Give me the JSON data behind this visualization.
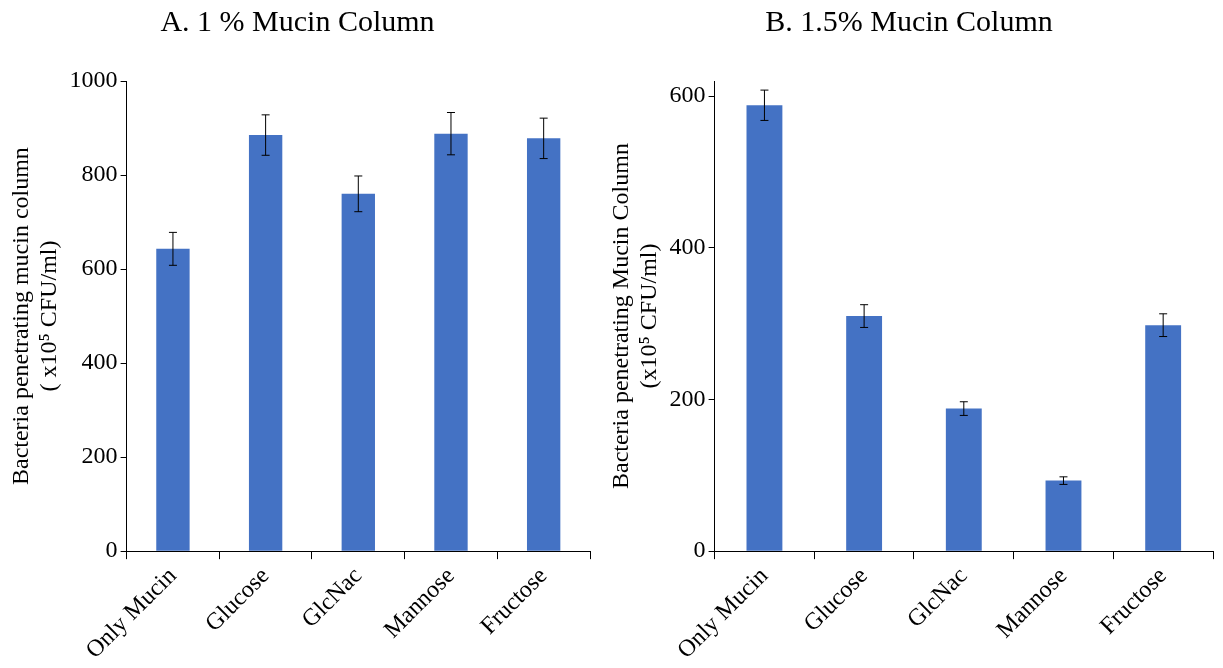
{
  "chart_data": [
    {
      "type": "bar",
      "title": "A. 1 % Mucin Column",
      "ylabel": "Bacteria penetrating mucin column\n( x10⁵ CFU/ml)",
      "categories": [
        "Only Mucin",
        "Glucose",
        "GlcNac",
        "Mannose",
        "Fructose"
      ],
      "values": [
        643,
        885,
        760,
        888,
        878
      ],
      "errors": [
        35,
        43,
        38,
        45,
        43
      ],
      "color": "#4472c4",
      "ylim": [
        0,
        1000
      ],
      "yticks": [
        0,
        200,
        400,
        600,
        800,
        1000
      ],
      "grid": false,
      "legend": false
    },
    {
      "type": "bar",
      "title": "B. 1.5% Mucin Column",
      "ylabel": "Bacteria penetrating Mucin Column\n(x10⁵ CFU/ml)",
      "categories": [
        "Only Mucin",
        "Glucose",
        "GlcNac",
        "Mannose",
        "Fructose"
      ],
      "values": [
        588,
        310,
        188,
        93,
        298
      ],
      "errors": [
        20,
        15,
        9,
        5,
        15
      ],
      "color": "#4472c4",
      "ylim": [
        0,
        620
      ],
      "yticks": [
        0,
        200,
        400,
        600
      ],
      "grid": false,
      "legend": false
    }
  ]
}
